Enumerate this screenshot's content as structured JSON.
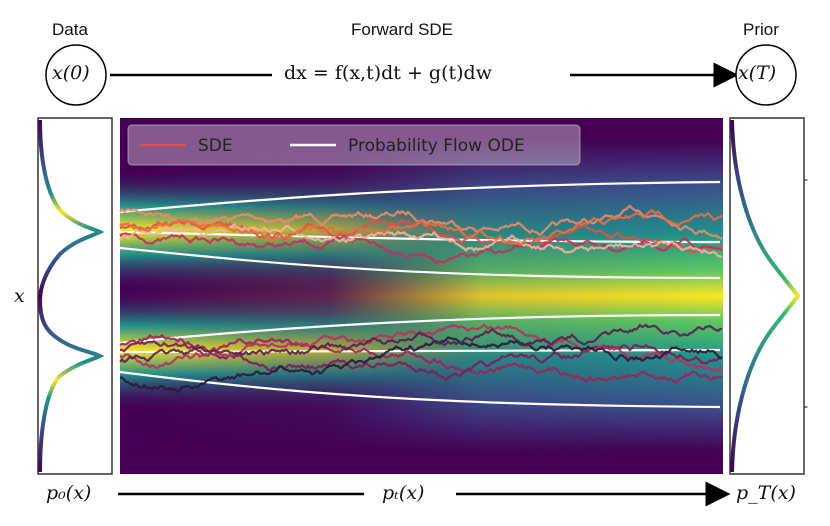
{
  "header": {
    "data_label": "Data",
    "forward_label": "Forward SDE",
    "prior_label": "Prior",
    "x0": "x(0)",
    "xT": "x(T)",
    "sde_equation": "dx = f(x,t)dt + g(t)dw"
  },
  "axes": {
    "y_label": "x",
    "p0": "p₀(x)",
    "pt": "pₜ(x)",
    "pT": "p_T(x)"
  },
  "legend": {
    "sde": "SDE",
    "ode": "Probability Flow ODE"
  },
  "colors": {
    "background_dark": "#440154",
    "density_peak": "#fde725",
    "ode_line": "#ffffff",
    "sde_line": "#e0504a"
  }
}
